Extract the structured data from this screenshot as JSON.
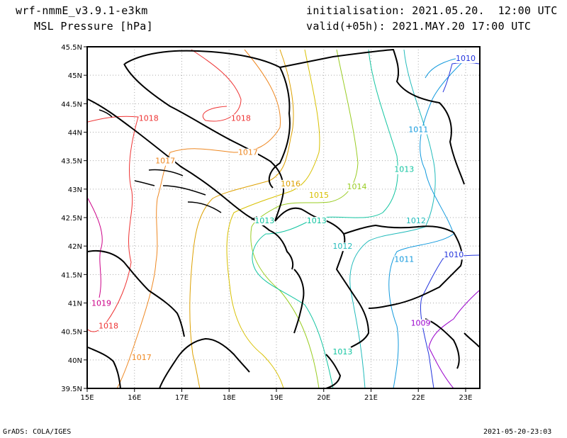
{
  "header": {
    "model": "wrf-nmmE_v3.9.1-e3km",
    "field": "MSL Pressure [hPa]",
    "init": "initialisation: 2021.05.20.  12:00 UTC",
    "valid": "valid(+05h): 2021.MAY.20 17:00 UTC"
  },
  "footer": {
    "credit": "GrADS: COLA/IGES",
    "timestamp": "2021-05-20-23:03"
  },
  "map": {
    "lon_range": [
      15,
      23.3
    ],
    "lat_range": [
      39.5,
      45.5
    ],
    "grid": true,
    "lon_ticks": [
      "15E",
      "16E",
      "17E",
      "18E",
      "19E",
      "20E",
      "21E",
      "22E",
      "23E"
    ],
    "lat_ticks": [
      "45.5N",
      "45N",
      "44.5N",
      "44N",
      "43.5N",
      "43N",
      "42.5N",
      "42N",
      "41.5N",
      "41N",
      "40.5N",
      "40N",
      "39.5N"
    ],
    "isobar_colors": {
      "1009": "#9900cc",
      "1010": "#2233dd",
      "1011": "#1199dd",
      "1012": "#22bbbb",
      "1013": "#11c4a0",
      "1014": "#99cc22",
      "1015": "#d8c000",
      "1016": "#dda000",
      "1017": "#ee8822",
      "1018": "#ee3333",
      "1019": "#cc0088"
    },
    "contour_labels": [
      {
        "text": "1010",
        "lon": 23.0,
        "lat": 45.25,
        "color": "#2233dd"
      },
      {
        "text": "1011",
        "lon": 22.0,
        "lat": 44.0,
        "color": "#1199dd"
      },
      {
        "text": "1013",
        "lon": 21.7,
        "lat": 43.3,
        "color": "#11c4a0"
      },
      {
        "text": "1014",
        "lon": 20.7,
        "lat": 43.0,
        "color": "#99cc22"
      },
      {
        "text": "1015",
        "lon": 19.9,
        "lat": 42.85,
        "color": "#d8c000"
      },
      {
        "text": "1016",
        "lon": 19.3,
        "lat": 43.05,
        "color": "#dda000"
      },
      {
        "text": "1017",
        "lon": 18.4,
        "lat": 43.6,
        "color": "#ee8822"
      },
      {
        "text": "1018",
        "lon": 18.25,
        "lat": 44.2,
        "color": "#ee3333"
      },
      {
        "text": "1018",
        "lon": 16.3,
        "lat": 44.2,
        "color": "#ee3333"
      },
      {
        "text": "1017",
        "lon": 16.65,
        "lat": 43.45,
        "color": "#ee8822"
      },
      {
        "text": "1013",
        "lon": 18.75,
        "lat": 42.4,
        "color": "#11c4a0"
      },
      {
        "text": "1013",
        "lon": 19.85,
        "lat": 42.4,
        "color": "#11c4a0"
      },
      {
        "text": "1012",
        "lon": 20.4,
        "lat": 41.95,
        "color": "#22bbbb"
      },
      {
        "text": "1012",
        "lon": 21.95,
        "lat": 42.4,
        "color": "#22bbbb"
      },
      {
        "text": "1011",
        "lon": 21.7,
        "lat": 41.72,
        "color": "#1199dd"
      },
      {
        "text": "1010",
        "lon": 22.75,
        "lat": 41.8,
        "color": "#2233dd"
      },
      {
        "text": "1009",
        "lon": 22.05,
        "lat": 40.6,
        "color": "#9900cc"
      },
      {
        "text": "1013",
        "lon": 20.4,
        "lat": 40.1,
        "color": "#11c4a0"
      },
      {
        "text": "1019",
        "lon": 15.3,
        "lat": 40.95,
        "color": "#cc0088"
      },
      {
        "text": "1018",
        "lon": 15.45,
        "lat": 40.55,
        "color": "#ee3333"
      },
      {
        "text": "1017",
        "lon": 16.15,
        "lat": 40.0,
        "color": "#ee8822"
      }
    ]
  }
}
